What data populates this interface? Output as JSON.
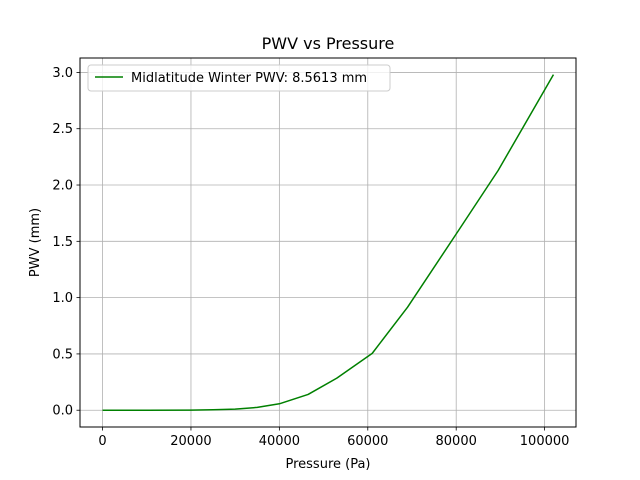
{
  "chart_data": {
    "type": "line",
    "title": "PWV vs Pressure",
    "xlabel": "Pressure (Pa)",
    "ylabel": "PWV (mm)",
    "xlim": [
      -5100,
      107100
    ],
    "ylim": [
      -0.149,
      3.128
    ],
    "x_ticks": [
      0,
      20000,
      40000,
      60000,
      80000,
      100000
    ],
    "x_tick_labels": [
      "0",
      "20000",
      "40000",
      "60000",
      "80000",
      "100000"
    ],
    "y_ticks": [
      0.0,
      0.5,
      1.0,
      1.5,
      2.0,
      2.5,
      3.0
    ],
    "y_tick_labels": [
      "0.0",
      "0.5",
      "1.0",
      "1.5",
      "2.0",
      "2.5",
      "3.0"
    ],
    "grid": true,
    "legend_position": "top-left",
    "series": [
      {
        "name": "Midlatitude Winter PWV: 8.5613 mm",
        "color": "#008000",
        "x": [
          0,
          10000,
          20000,
          25000,
          30000,
          35000,
          40000,
          46500,
          53000,
          61000,
          69000,
          80000,
          89500,
          102000
        ],
        "y": [
          0.0,
          0.0,
          0.001,
          0.004,
          0.01,
          0.025,
          0.057,
          0.14,
          0.285,
          0.505,
          0.915,
          1.565,
          2.13,
          2.98
        ]
      }
    ]
  }
}
